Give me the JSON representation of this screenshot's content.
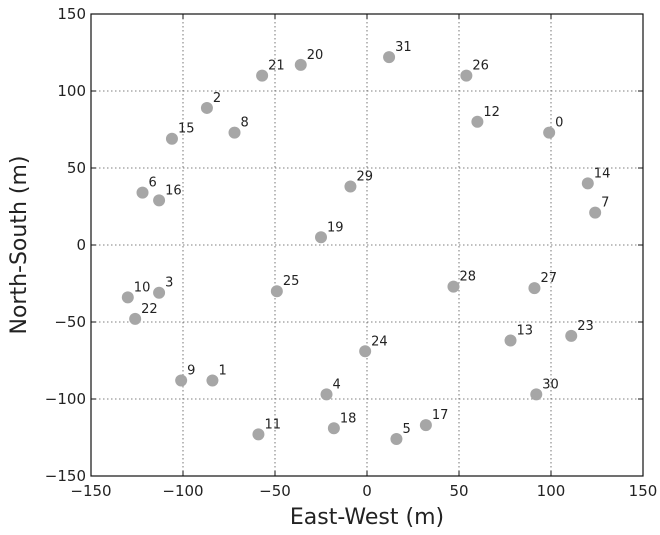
{
  "chart_data": {
    "type": "scatter",
    "title": "",
    "xlabel": "East-West (m)",
    "ylabel": "North-South (m)",
    "xlim": [
      -150,
      150
    ],
    "ylim": [
      -150,
      150
    ],
    "xticks": [
      -150,
      -100,
      -50,
      0,
      50,
      100,
      150
    ],
    "yticks": [
      -150,
      -100,
      -50,
      0,
      50,
      100,
      150
    ],
    "grid": true,
    "marker_color": "#a6a6a6",
    "points": [
      {
        "label": "0",
        "x": 99,
        "y": 73
      },
      {
        "label": "1",
        "x": -84,
        "y": -88
      },
      {
        "label": "2",
        "x": -87,
        "y": 89
      },
      {
        "label": "3",
        "x": -113,
        "y": -31
      },
      {
        "label": "4",
        "x": -22,
        "y": -97
      },
      {
        "label": "5",
        "x": 16,
        "y": -126
      },
      {
        "label": "6",
        "x": -122,
        "y": 34
      },
      {
        "label": "7",
        "x": 124,
        "y": 21
      },
      {
        "label": "8",
        "x": -72,
        "y": 73
      },
      {
        "label": "9",
        "x": -101,
        "y": -88
      },
      {
        "label": "10",
        "x": -130,
        "y": -34
      },
      {
        "label": "11",
        "x": -59,
        "y": -123
      },
      {
        "label": "12",
        "x": 60,
        "y": 80
      },
      {
        "label": "13",
        "x": 78,
        "y": -62
      },
      {
        "label": "14",
        "x": 120,
        "y": 40
      },
      {
        "label": "15",
        "x": -106,
        "y": 69
      },
      {
        "label": "16",
        "x": -113,
        "y": 29
      },
      {
        "label": "17",
        "x": 32,
        "y": -117
      },
      {
        "label": "18",
        "x": -18,
        "y": -119
      },
      {
        "label": "19",
        "x": -25,
        "y": 5
      },
      {
        "label": "20",
        "x": -36,
        "y": 117
      },
      {
        "label": "21",
        "x": -57,
        "y": 110
      },
      {
        "label": "22",
        "x": -126,
        "y": -48
      },
      {
        "label": "23",
        "x": 111,
        "y": -59
      },
      {
        "label": "24",
        "x": -1,
        "y": -69
      },
      {
        "label": "25",
        "x": -49,
        "y": -30
      },
      {
        "label": "26",
        "x": 54,
        "y": 110
      },
      {
        "label": "27",
        "x": 91,
        "y": -28
      },
      {
        "label": "28",
        "x": 47,
        "y": -27
      },
      {
        "label": "29",
        "x": -9,
        "y": 38
      },
      {
        "label": "30",
        "x": 92,
        "y": -97
      },
      {
        "label": "31",
        "x": 12,
        "y": 122
      }
    ]
  }
}
